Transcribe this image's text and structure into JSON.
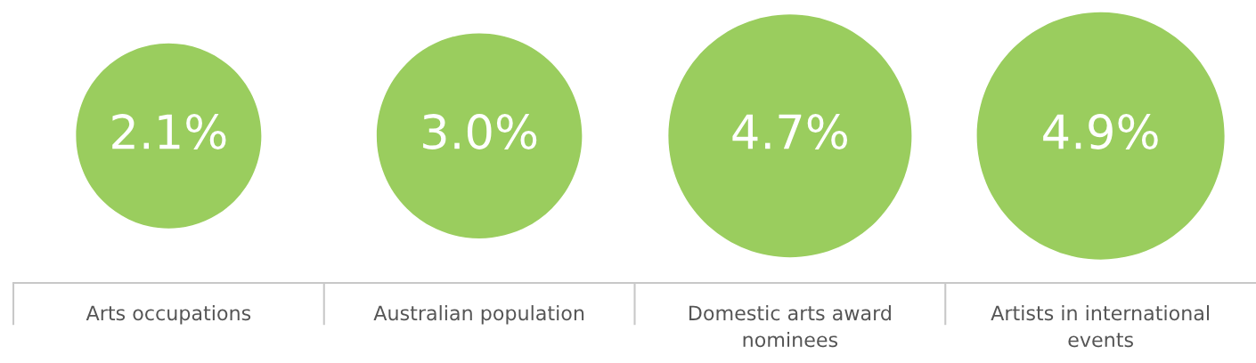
{
  "chart_data": {
    "type": "other",
    "categories": [
      "Arts occupations",
      "Australian population",
      "Domestic arts award\nnominees",
      "Artists in international\nevents"
    ],
    "values": [
      2.1,
      3.0,
      4.7,
      4.9
    ],
    "value_labels": [
      "2.1%",
      "3.0%",
      "4.7%",
      "4.9%"
    ],
    "color": "#9acd5e"
  }
}
